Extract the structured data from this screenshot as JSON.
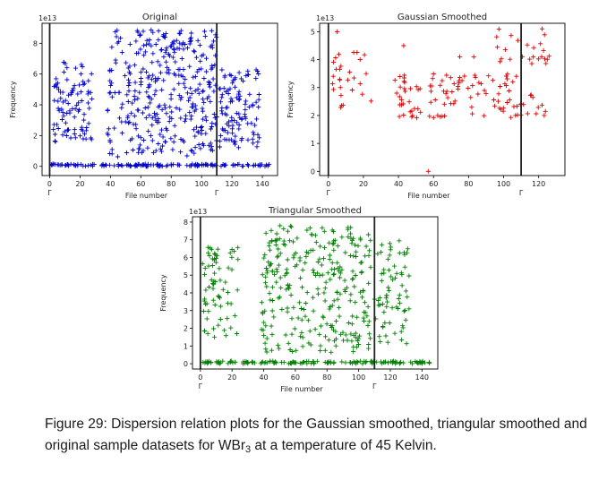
{
  "chart_data": [
    {
      "type": "scatter",
      "title": "Original",
      "xlabel": "File number",
      "ylabel": "Frequency",
      "exponent": "1e13",
      "marker": "+",
      "color": "#0000cc",
      "xlim": [
        -5,
        150
      ],
      "ylim": [
        -0.6,
        9.3
      ],
      "xticks": [
        "0",
        "20",
        "40",
        "60",
        "80",
        "100",
        "120",
        "140"
      ],
      "yticks": [
        "0",
        "2",
        "4",
        "6",
        "8"
      ],
      "vlines": [
        0,
        110
      ],
      "gamma_labels": [
        "Γ",
        "Γ"
      ],
      "series": [
        {
          "segments": [
            {
              "x": [
                2,
                28
              ],
              "y": [
                1.6,
                6.8
              ],
              "n": 95
            },
            {
              "x": [
                38,
                110
              ],
              "y": [
                0.6,
                8.9
              ],
              "n": 360
            },
            {
              "x": [
                111,
                138
              ],
              "y": [
                1.2,
                6.3
              ],
              "n": 110
            },
            {
              "x": [
                0,
                145
              ],
              "y": [
                0.0,
                0.15
              ],
              "n": 140
            }
          ]
        }
      ]
    },
    {
      "type": "scatter",
      "title": "Gaussian Smoothed",
      "xlabel": "File number",
      "ylabel": "Frequency",
      "exponent": "1e13",
      "marker": "+",
      "color": "#e00000",
      "xlim": [
        -5,
        135
      ],
      "ylim": [
        -0.15,
        5.3
      ],
      "xticks": [
        "0",
        "20",
        "40",
        "60",
        "80",
        "100",
        "120"
      ],
      "yticks": [
        "0",
        "1",
        "2",
        "3",
        "4",
        "5"
      ],
      "vlines": [
        0,
        110
      ],
      "gamma_labels": [
        "Γ",
        "Γ"
      ],
      "series": [
        {
          "segments": [
            {
              "x": [
                1,
                25
              ],
              "y": [
                2.2,
                4.4
              ],
              "n": 28
            },
            {
              "x": [
                38,
                108
              ],
              "y": [
                1.9,
                3.5
              ],
              "n": 95
            },
            {
              "x": [
                96,
                128
              ],
              "y": [
                1.9,
                5.1
              ],
              "n": 45
            }
          ],
          "points": [
            {
              "x": 57,
              "y": 0.0
            },
            {
              "x": 43,
              "y": 4.5
            },
            {
              "x": 122,
              "y": 5.1
            },
            {
              "x": 5,
              "y": 5.0
            },
            {
              "x": 75,
              "y": 4.1
            },
            {
              "x": 83,
              "y": 4.1
            }
          ]
        }
      ]
    },
    {
      "type": "scatter",
      "title": "Triangular Smoothed",
      "xlabel": "File number",
      "ylabel": "Frequency",
      "exponent": "1e13",
      "marker": "+",
      "color": "#008000",
      "xlim": [
        -5,
        150
      ],
      "ylim": [
        -0.3,
        8.3
      ],
      "xticks": [
        "0",
        "20",
        "40",
        "60",
        "80",
        "100",
        "120",
        "140"
      ],
      "yticks": [
        "0",
        "1",
        "2",
        "3",
        "4",
        "5",
        "6",
        "7",
        "8"
      ],
      "vlines": [
        0,
        110
      ],
      "gamma_labels": [
        "Γ",
        "Γ"
      ],
      "series": [
        {
          "segments": [
            {
              "x": [
                1,
                25
              ],
              "y": [
                1.5,
                6.6
              ],
              "n": 70
            },
            {
              "x": [
                38,
                108
              ],
              "y": [
                0.6,
                7.8
              ],
              "n": 300
            },
            {
              "x": [
                110,
                132
              ],
              "y": [
                1.1,
                7.0
              ],
              "n": 70
            },
            {
              "x": [
                0,
                145
              ],
              "y": [
                0.0,
                0.15
              ],
              "n": 140
            }
          ]
        }
      ]
    }
  ],
  "caption": {
    "label": "Figure 29:",
    "text_before_sub": "Dispersion relation plots for the Gaussian smoothed, triangular smoothed and original sample datasets for WBr",
    "sub": "3",
    "text_after_sub": " at a temperature of 45 Kelvin."
  }
}
